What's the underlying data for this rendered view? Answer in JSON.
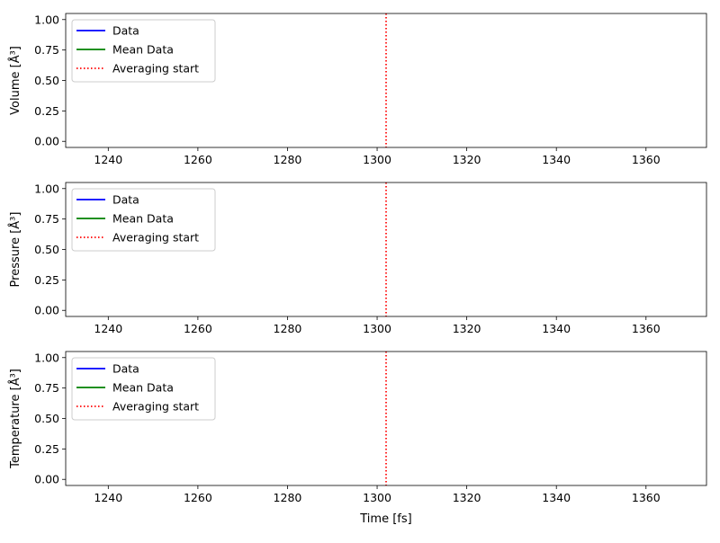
{
  "chart_data": [
    {
      "type": "line",
      "title": "",
      "xlabel": "",
      "ylabel": "Volume [Å³]",
      "xlim": [
        1230.5,
        1373.5
      ],
      "ylim": [
        -0.05,
        1.05
      ],
      "xticks": [
        1240,
        1260,
        1280,
        1300,
        1320,
        1340,
        1360
      ],
      "xtick_labels": [
        "1240",
        "1260",
        "1280",
        "1300",
        "1320",
        "1340",
        "1360"
      ],
      "yticks": [
        0.0,
        0.25,
        0.5,
        0.75,
        1.0
      ],
      "ytick_labels": [
        "0.00",
        "0.25",
        "0.50",
        "0.75",
        "1.00"
      ],
      "legend_position": "upper left",
      "grid": false,
      "series": [
        {
          "name": "Data",
          "color": "#0000ff",
          "style": "solid",
          "x": [],
          "y": []
        },
        {
          "name": "Mean Data",
          "color": "#008000",
          "style": "solid",
          "x": [],
          "y": []
        }
      ],
      "vlines": [
        {
          "name": "Averaging start",
          "x": 1302,
          "color": "#ff0000",
          "style": "dotted"
        }
      ]
    },
    {
      "type": "line",
      "title": "",
      "xlabel": "",
      "ylabel": "Pressure [Å³]",
      "xlim": [
        1230.5,
        1373.5
      ],
      "ylim": [
        -0.05,
        1.05
      ],
      "xticks": [
        1240,
        1260,
        1280,
        1300,
        1320,
        1340,
        1360
      ],
      "xtick_labels": [
        "1240",
        "1260",
        "1280",
        "1300",
        "1320",
        "1340",
        "1360"
      ],
      "yticks": [
        0.0,
        0.25,
        0.5,
        0.75,
        1.0
      ],
      "ytick_labels": [
        "0.00",
        "0.25",
        "0.50",
        "0.75",
        "1.00"
      ],
      "legend_position": "upper left",
      "grid": false,
      "series": [
        {
          "name": "Data",
          "color": "#0000ff",
          "style": "solid",
          "x": [],
          "y": []
        },
        {
          "name": "Mean Data",
          "color": "#008000",
          "style": "solid",
          "x": [],
          "y": []
        }
      ],
      "vlines": [
        {
          "name": "Averaging start",
          "x": 1302,
          "color": "#ff0000",
          "style": "dotted"
        }
      ]
    },
    {
      "type": "line",
      "title": "",
      "xlabel": "Time [fs]",
      "ylabel": "Temperature [Å³]",
      "xlim": [
        1230.5,
        1373.5
      ],
      "ylim": [
        -0.05,
        1.05
      ],
      "xticks": [
        1240,
        1260,
        1280,
        1300,
        1320,
        1340,
        1360
      ],
      "xtick_labels": [
        "1240",
        "1260",
        "1280",
        "1300",
        "1320",
        "1340",
        "1360"
      ],
      "yticks": [
        0.0,
        0.25,
        0.5,
        0.75,
        1.0
      ],
      "ytick_labels": [
        "0.00",
        "0.25",
        "0.50",
        "0.75",
        "1.00"
      ],
      "legend_position": "upper left",
      "grid": false,
      "series": [
        {
          "name": "Data",
          "color": "#0000ff",
          "style": "solid",
          "x": [],
          "y": []
        },
        {
          "name": "Mean Data",
          "color": "#008000",
          "style": "solid",
          "x": [],
          "y": []
        }
      ],
      "vlines": [
        {
          "name": "Averaging start",
          "x": 1302,
          "color": "#ff0000",
          "style": "dotted"
        }
      ]
    }
  ]
}
